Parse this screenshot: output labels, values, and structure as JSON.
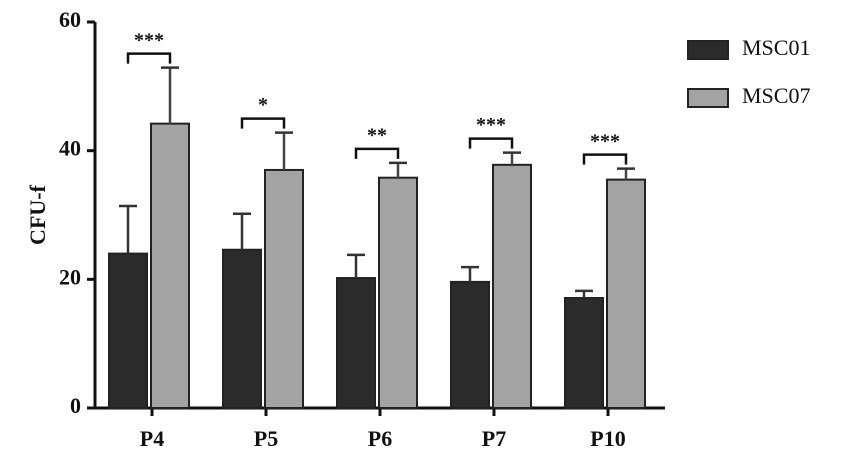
{
  "chart_data": {
    "type": "bar",
    "y_label": "CFU-f",
    "categories": [
      "P4",
      "P5",
      "P6",
      "P7",
      "P10"
    ],
    "series": [
      {
        "name": "MSC01",
        "color": "#2b2b2b",
        "values": [
          24,
          24.6,
          20.2,
          19.6,
          17.1
        ],
        "errors": [
          7.4,
          5.6,
          3.6,
          2.3,
          1.1
        ]
      },
      {
        "name": "MSC07",
        "color": "#a3a3a3",
        "values": [
          44.2,
          37,
          35.8,
          37.8,
          35.5
        ],
        "errors": [
          8.7,
          5.8,
          2.3,
          1.9,
          1.7
        ]
      }
    ],
    "annotations": [
      "***",
      "*",
      "**",
      "***",
      "***"
    ],
    "ylim": [
      0,
      60
    ],
    "yticks": [
      0,
      20,
      40,
      60
    ],
    "legend": "right"
  }
}
